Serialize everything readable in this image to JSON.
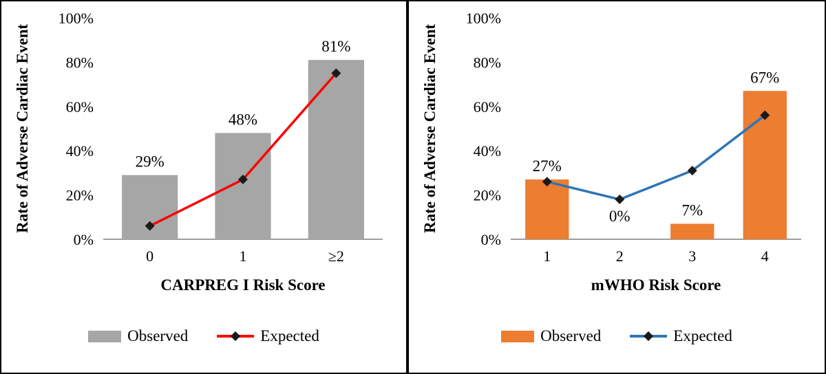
{
  "chart_data": [
    {
      "type": "bar+line",
      "title": "",
      "categories": [
        "0",
        "1",
        "≥2"
      ],
      "xlabel": "CARPREG I Risk Score",
      "ylabel": "Rate of Adverse Cardiac Event",
      "ylim": [
        0,
        100
      ],
      "ytick_step": 20,
      "yticks": [
        "0%",
        "20%",
        "40%",
        "60%",
        "80%",
        "100%"
      ],
      "grid": false,
      "legend_position": "bottom",
      "axis_line_color": "#7f7f7f",
      "series": [
        {
          "name": "Observed",
          "type": "bar",
          "color": "#a6a6a6",
          "values": [
            29,
            48,
            81
          ],
          "data_labels": [
            "29%",
            "48%",
            "81%"
          ]
        },
        {
          "name": "Expected",
          "type": "line",
          "color": "#fe0000",
          "marker": "diamond",
          "marker_color": "#1a1a1a",
          "values": [
            6,
            27,
            75
          ]
        }
      ]
    },
    {
      "type": "bar+line",
      "title": "",
      "categories": [
        "1",
        "2",
        "3",
        "4"
      ],
      "xlabel": "mWHO Risk Score",
      "ylabel": "Rate of Adverse Cardiac Event",
      "ylim": [
        0,
        100
      ],
      "ytick_step": 20,
      "yticks": [
        "0%",
        "20%",
        "40%",
        "60%",
        "80%",
        "100%"
      ],
      "grid": false,
      "legend_position": "bottom",
      "axis_line_color": "#7f7f7f",
      "series": [
        {
          "name": "Observed",
          "type": "bar",
          "color": "#ed7d31",
          "values": [
            27,
            0,
            7,
            67
          ],
          "data_labels": [
            "27%",
            "0%",
            "7%",
            "67%"
          ]
        },
        {
          "name": "Expected",
          "type": "line",
          "color": "#2e75b6",
          "marker": "diamond",
          "marker_color": "#1a1a1a",
          "values": [
            26,
            18,
            31,
            56
          ]
        }
      ]
    }
  ]
}
